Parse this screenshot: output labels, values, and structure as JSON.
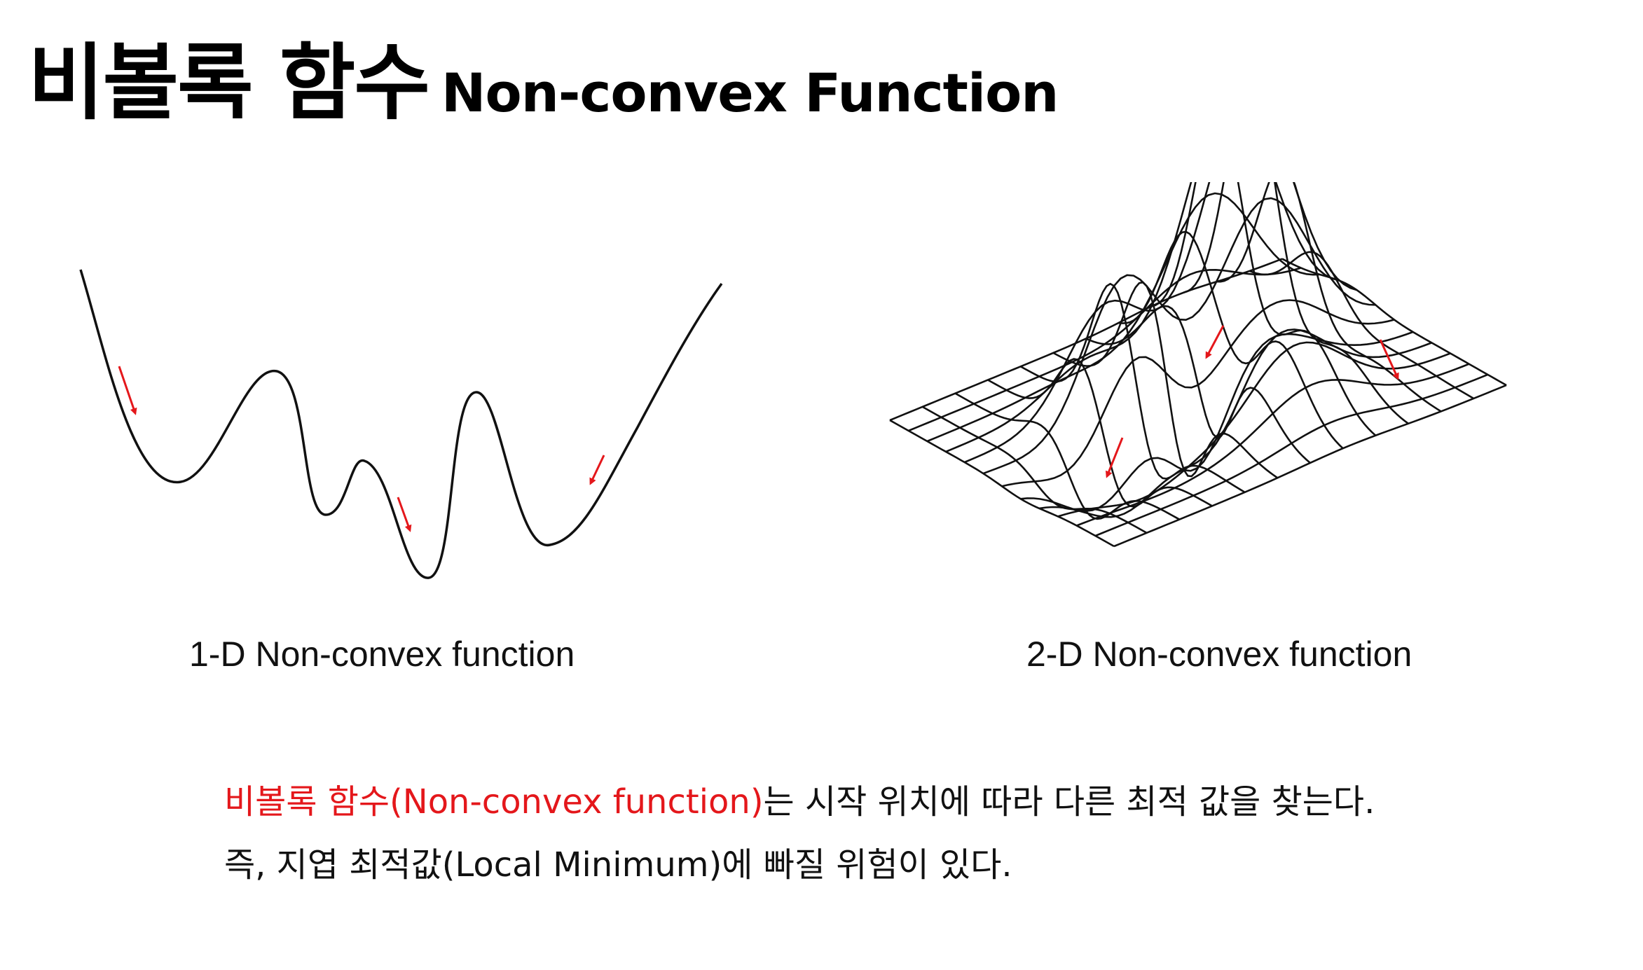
{
  "title": {
    "korean": "비볼록 함수",
    "english": "Non-convex Function"
  },
  "figures": [
    {
      "caption": "1-D Non-convex function"
    },
    {
      "caption": "2-D Non-convex function"
    }
  ],
  "description": {
    "line1_highlight": "비볼록 함수(Non-convex function)",
    "line1_rest": "는 시작 위치에 따라 다른 최적 값을 찾는다.",
    "line2": "즉, 지엽 최적값(Local Minimum)에 빠질 위험이 있다."
  },
  "colors": {
    "curve": "#111111",
    "arrow": "#e4171b",
    "highlight": "#e4171b"
  }
}
